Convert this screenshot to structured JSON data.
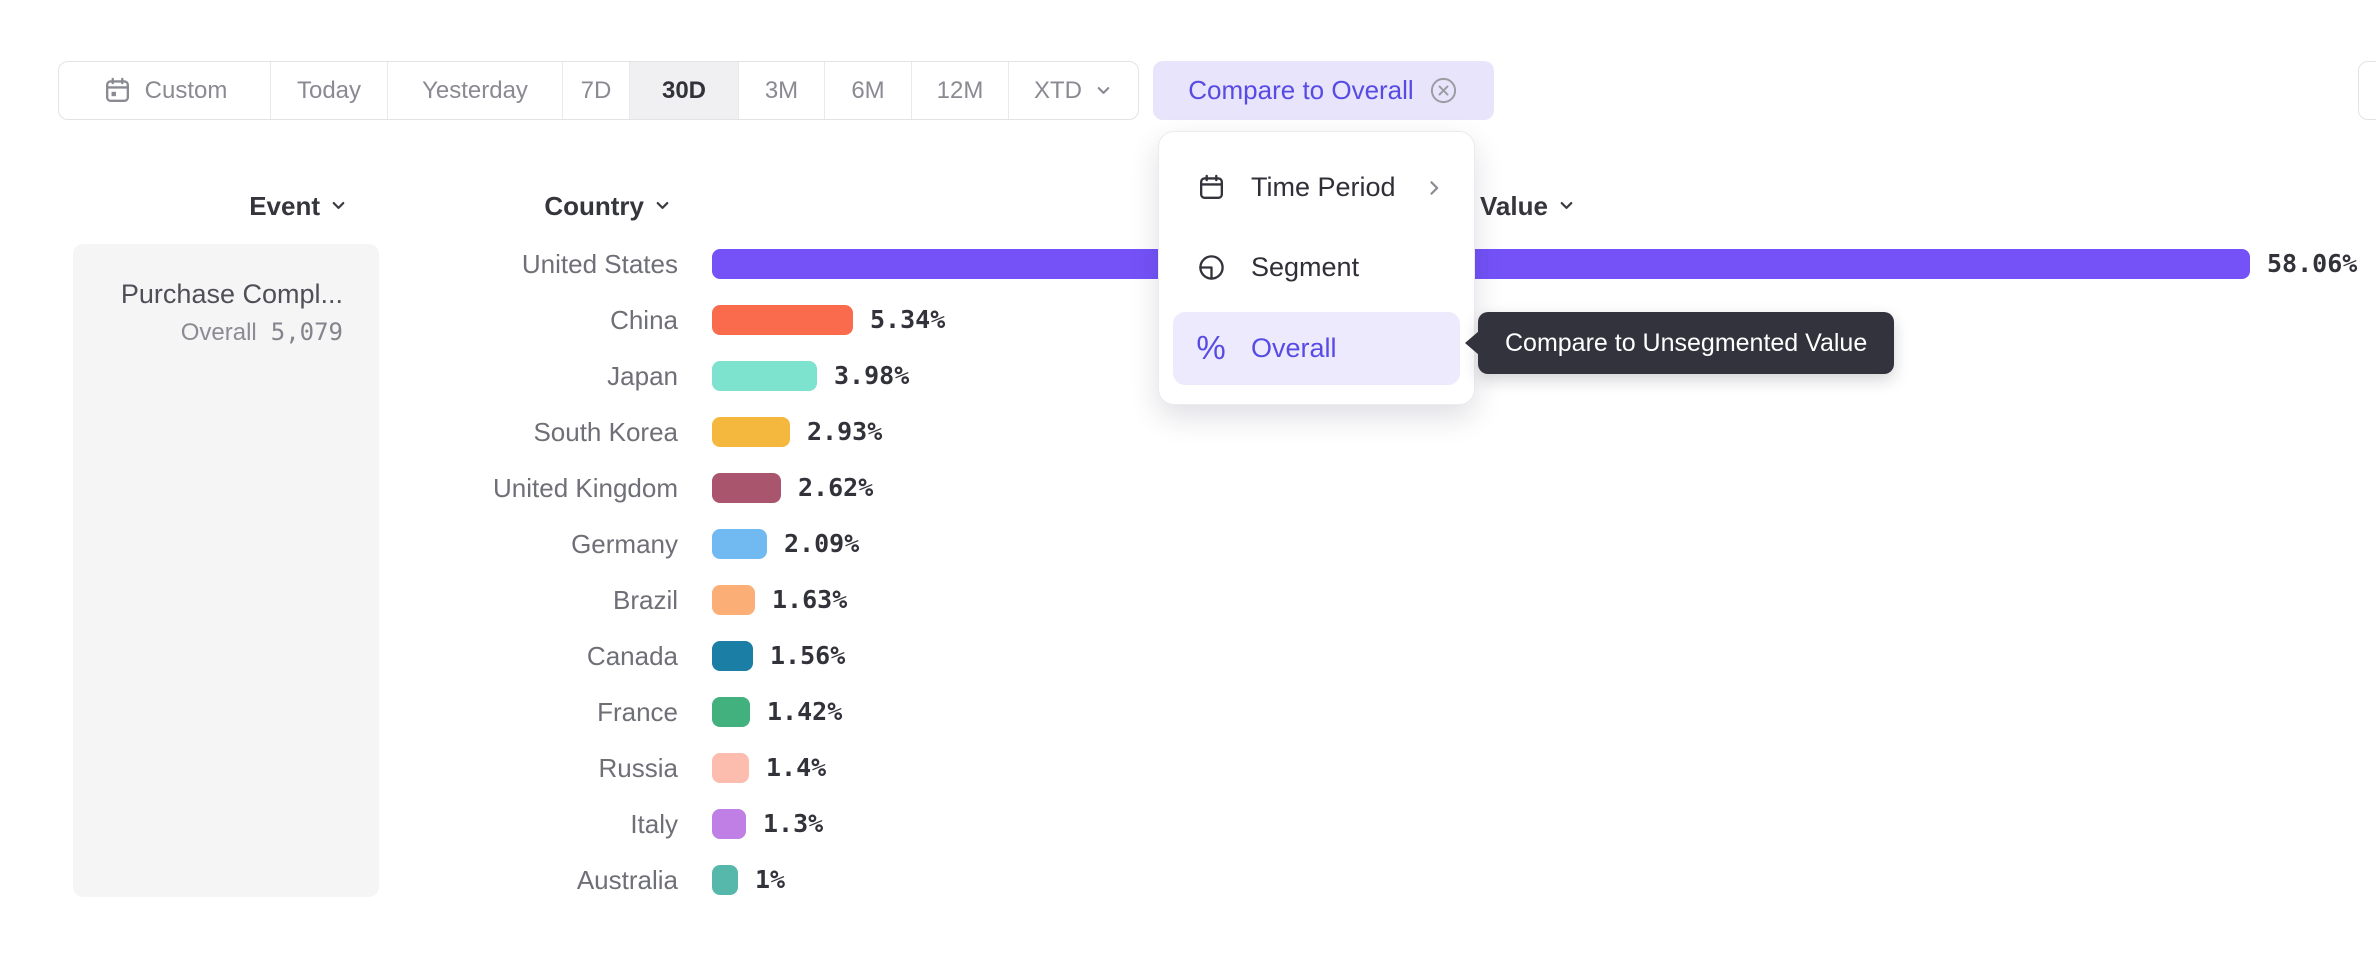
{
  "toolbar": {
    "ranges": [
      {
        "id": "custom",
        "label": "Custom",
        "icon": "calendar",
        "selected": false
      },
      {
        "id": "today",
        "label": "Today",
        "selected": false
      },
      {
        "id": "yesterday",
        "label": "Yesterday",
        "selected": false
      },
      {
        "id": "7d",
        "label": "7D",
        "selected": false
      },
      {
        "id": "30d",
        "label": "30D",
        "selected": true
      },
      {
        "id": "3m",
        "label": "3M",
        "selected": false
      },
      {
        "id": "6m",
        "label": "6M",
        "selected": false
      },
      {
        "id": "12m",
        "label": "12M",
        "selected": false
      },
      {
        "id": "xtd",
        "label": "XTD",
        "chevron": true,
        "selected": false
      }
    ],
    "compare_button": {
      "label": "Compare to Overall",
      "close_icon": "circle-x"
    }
  },
  "columns": {
    "event": "Event",
    "country": "Country",
    "value": "Value"
  },
  "event_card": {
    "title": "Purchase Compl...",
    "overall_label": "Overall",
    "overall_value": "5,079"
  },
  "menu": {
    "items": [
      {
        "id": "time-period",
        "label": "Time Period",
        "icon": "calendar",
        "has_submenu": true,
        "active": false
      },
      {
        "id": "segment",
        "label": "Segment",
        "icon": "segment",
        "has_submenu": false,
        "active": false
      },
      {
        "id": "overall",
        "label": "Overall",
        "icon": "percent",
        "has_submenu": false,
        "active": true
      }
    ]
  },
  "tooltip": {
    "text": "Compare to Unsegmented Value"
  },
  "chart_data": {
    "type": "bar",
    "orientation": "horizontal",
    "unit": "%",
    "categories": [
      "United States",
      "China",
      "Japan",
      "South Korea",
      "United Kingdom",
      "Germany",
      "Brazil",
      "Canada",
      "France",
      "Russia",
      "Italy",
      "Australia"
    ],
    "values": [
      58.06,
      5.34,
      3.98,
      2.93,
      2.62,
      2.09,
      1.63,
      1.56,
      1.42,
      1.4,
      1.3,
      1
    ],
    "value_labels": [
      "58.06%",
      "5.34%",
      "3.98%",
      "2.93%",
      "2.62%",
      "2.09%",
      "1.63%",
      "1.56%",
      "1.42%",
      "1.4%",
      "1.3%",
      "1%"
    ],
    "bar_colors": [
      "#7452f8",
      "#fa6b4d",
      "#7de2ce",
      "#f4b83f",
      "#a9556e",
      "#70b9f1",
      "#fbae76",
      "#1b7ea4",
      "#42b17e",
      "#fcbcae",
      "#bf7fe4",
      "#56b8ab"
    ],
    "xlim": [
      0,
      58.06
    ],
    "grid": false,
    "legend": false
  },
  "colors": {
    "accent": "#584be4",
    "chip-bg": "#e7e4fb",
    "menu-active-bg": "#edeafd",
    "tooltip-bg": "#33333d",
    "selected-range-bg": "#f0f0f2",
    "card-bg": "#f5f5f6",
    "border": "#e3e3e6",
    "top-bar-color": "#7452f8"
  }
}
